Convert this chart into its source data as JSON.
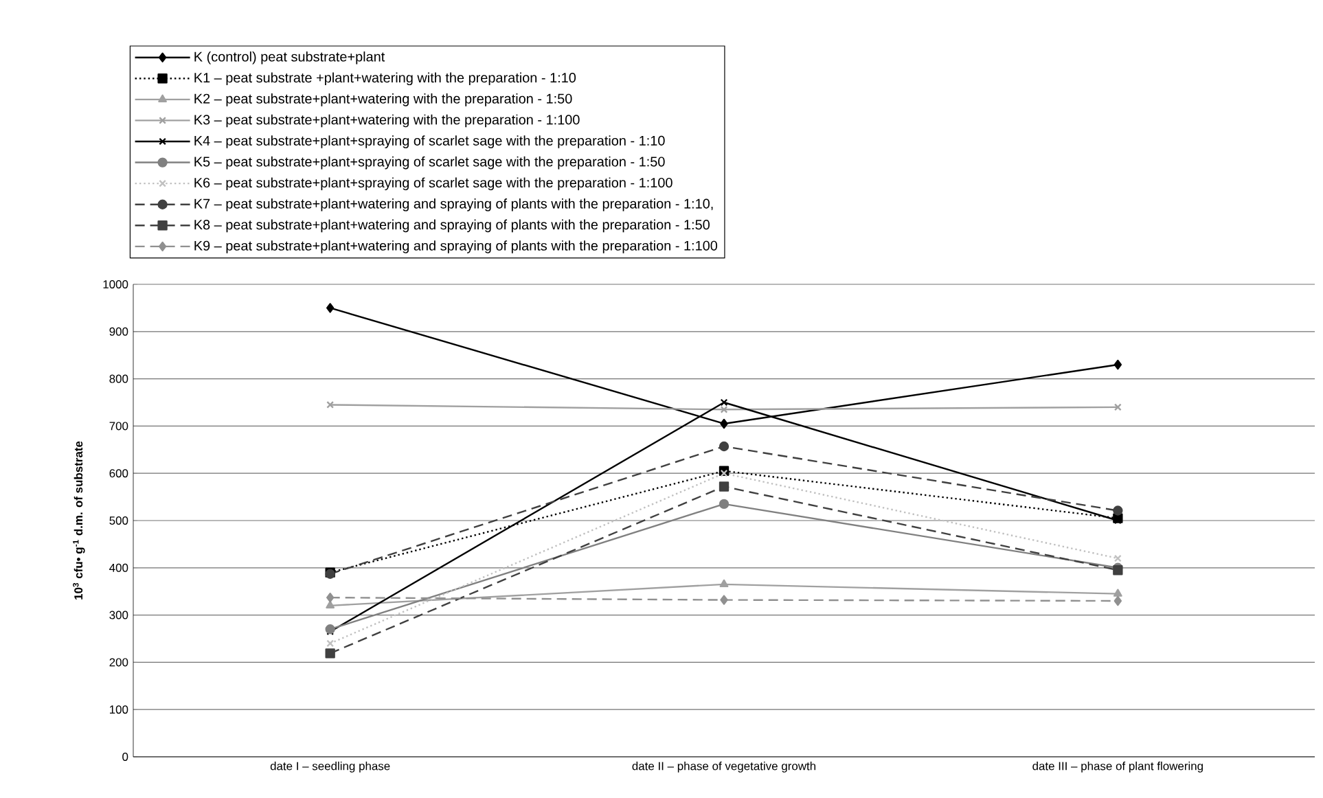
{
  "chart_data": {
    "type": "line",
    "ylabel": "10$^{3}$ cfu• g$^{-1}$ d.m. of substrate",
    "categories": [
      "date I – seedling phase",
      "date II – phase of vegetative growth",
      "date III – phase of plant flowering"
    ],
    "ylim": [
      0,
      1000
    ],
    "yticks": [
      0,
      100,
      200,
      300,
      400,
      500,
      600,
      700,
      800,
      900,
      1000
    ],
    "grid": "y",
    "legend": "top left",
    "series": [
      {
        "name": "K (control) peat substrate+plant",
        "color": "#000000",
        "marker": "diamond",
        "line_style": "solid",
        "values": [
          950,
          705,
          830
        ]
      },
      {
        "name": "K1 – peat substrate +plant+watering with the preparation - 1:10",
        "color": "#000000",
        "marker": "square",
        "line_style": "dotted",
        "values": [
          390,
          605,
          505
        ]
      },
      {
        "name": "K2 – peat substrate+plant+watering with the preparation - 1:50",
        "color": "#a0a0a0",
        "marker": "triangle",
        "line_style": "solid",
        "values": [
          320,
          365,
          345
        ]
      },
      {
        "name": "K3 – peat substrate+plant+watering with the preparation - 1:100",
        "color": "#a0a0a0",
        "marker": "cross",
        "line_style": "solid",
        "values": [
          745,
          735,
          740
        ]
      },
      {
        "name": "K4 – peat substrate+plant+spraying of scarlet sage with the preparation - 1:10",
        "color": "#000000",
        "marker": "cross",
        "line_style": "solid",
        "values": [
          265,
          750,
          500
        ]
      },
      {
        "name": "K5 – peat substrate+plant+spraying of scarlet sage with the preparation - 1:50",
        "color": "#808080",
        "marker": "circle",
        "line_style": "solid",
        "values": [
          270,
          535,
          400
        ]
      },
      {
        "name": "K6 – peat substrate+plant+spraying of scarlet sage with the preparation - 1:100",
        "color": "#c0c0c0",
        "marker": "cross",
        "line_style": "dotted",
        "values": [
          240,
          600,
          420
        ]
      },
      {
        "name": "K7 – peat substrate+plant+watering and spraying of plants with the preparation - 1:10,",
        "color": "#404040",
        "marker": "circle",
        "line_style": "dashed",
        "values": [
          387,
          657,
          521
        ]
      },
      {
        "name": "K8 – peat substrate+plant+watering and spraying of plants with the preparation - 1:50",
        "color": "#404040",
        "marker": "square",
        "line_style": "dashed",
        "values": [
          219,
          572,
          395
        ]
      },
      {
        "name": "K9 – peat substrate+plant+watering and spraying of plants with the preparation - 1:100",
        "color": "#909090",
        "marker": "diamond",
        "line_style": "dashed",
        "values": [
          337,
          332,
          330
        ]
      }
    ]
  }
}
